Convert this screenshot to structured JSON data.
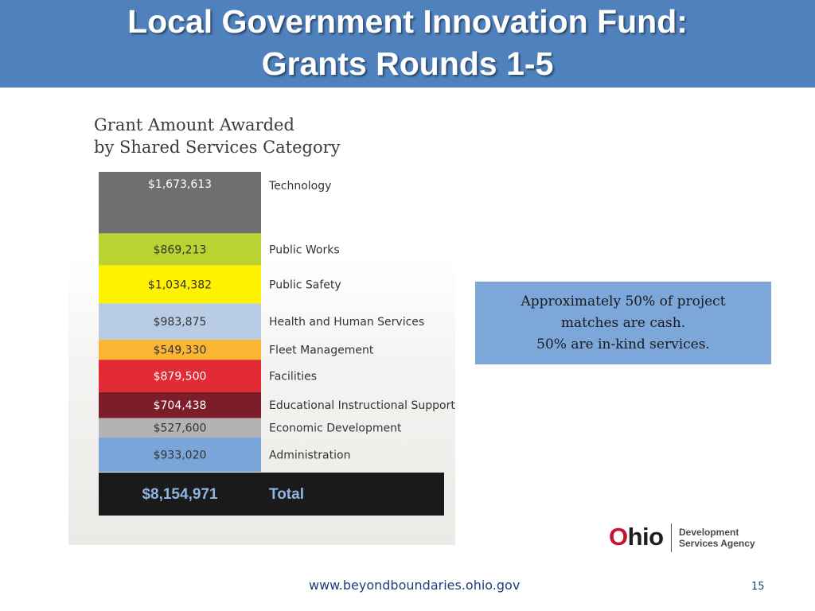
{
  "slide": {
    "title_line_1": "Local Government Innovation Fund:",
    "title_line_2": "Grants Rounds 1-5",
    "footer_url": "www.beyondboundaries.ohio.gov",
    "page_number": "15"
  },
  "note": {
    "line_1": "Approximately 50% of project",
    "line_2": "matches are cash.",
    "line_3": "50% are in-kind services."
  },
  "logo": {
    "wordmark": "Ohio",
    "agency_line_1": "Development",
    "agency_line_2": "Services Agency"
  },
  "chart_data": {
    "type": "bar",
    "orientation": "stacked-vertical",
    "title": "Grant Amount Awarded by Shared Services Category",
    "title_lines": [
      "Grant Amount Awarded",
      "by Shared Services Category"
    ],
    "categories": [
      "Technology",
      "Public Works",
      "Public Safety",
      "Health and Human Services",
      "Fleet Management",
      "Facilities",
      "Educational Instructional Support",
      "Economic Development",
      "Administration"
    ],
    "values": [
      1673613,
      869213,
      1034382,
      983875,
      549330,
      879500,
      704438,
      527600,
      933020
    ],
    "value_labels": [
      "$1,673,613",
      "$869,213",
      "$1,034,382",
      "$983,875",
      "$549,330",
      "$879,500",
      "$704,438",
      "$527,600",
      "$933,020"
    ],
    "colors": [
      "#6f6f6f",
      "#b9d432",
      "#fff200",
      "#b8cce4",
      "#fbb534",
      "#e12a33",
      "#7b1e29",
      "#b3b3b3",
      "#7aa5d8"
    ],
    "label_colors": [
      "#ffffff",
      "#333333",
      "#333333",
      "#333333",
      "#333333",
      "#ffffff",
      "#ffffff",
      "#333333",
      "#333333"
    ],
    "total": {
      "label": "Total",
      "value": 8154971,
      "value_label": "$8,154,971",
      "color": "#1a1a1a",
      "text_color": "#8eb4e3"
    },
    "legend": "inline-right"
  }
}
